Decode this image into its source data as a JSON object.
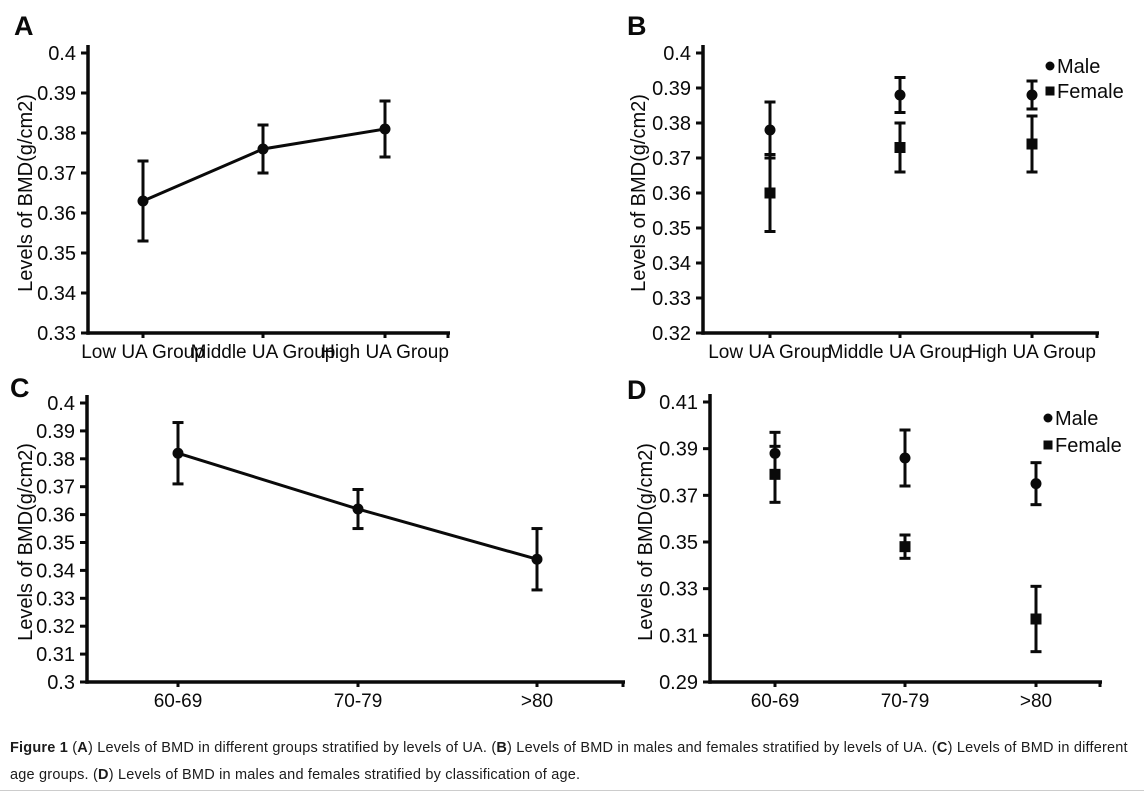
{
  "chart_data": [
    {
      "panel": "A",
      "type": "line",
      "title": "",
      "ylabel": "Levels of BMD(g/cm2)",
      "categories": [
        "Low UA Group",
        "Middle UA Group",
        "High UA Group"
      ],
      "ylim": [
        0.33,
        0.4
      ],
      "ytick_step": 0.01,
      "grid": false,
      "legend": null,
      "series": [
        {
          "marker": "circle",
          "connect": true,
          "values": [
            0.363,
            0.376,
            0.381
          ],
          "err_low": [
            0.353,
            0.37,
            0.374
          ],
          "err_high": [
            0.373,
            0.382,
            0.388
          ]
        }
      ]
    },
    {
      "panel": "B",
      "type": "scatter",
      "title": "",
      "ylabel": "Levels of BMD(g/cm2)",
      "categories": [
        "Low UA Group",
        "Middle UA Group",
        "High UA Group"
      ],
      "ylim": [
        0.32,
        0.4
      ],
      "ytick_step": 0.01,
      "grid": false,
      "legend": {
        "entries": [
          "Male",
          "Female"
        ],
        "position": "top-right"
      },
      "series": [
        {
          "name": "Male",
          "marker": "circle",
          "connect": false,
          "values": [
            0.378,
            0.388,
            0.388
          ],
          "err_low": [
            0.37,
            0.383,
            0.384
          ],
          "err_high": [
            0.386,
            0.393,
            0.392
          ]
        },
        {
          "name": "Female",
          "marker": "square",
          "connect": false,
          "values": [
            0.36,
            0.373,
            0.374
          ],
          "err_low": [
            0.349,
            0.366,
            0.366
          ],
          "err_high": [
            0.371,
            0.38,
            0.382
          ]
        }
      ]
    },
    {
      "panel": "C",
      "type": "line",
      "title": "",
      "ylabel": "Levels of BMD(g/cm2)",
      "categories": [
        "60-69",
        "70-79",
        ">80"
      ],
      "ylim": [
        0.3,
        0.4
      ],
      "ytick_step": 0.01,
      "grid": false,
      "legend": null,
      "series": [
        {
          "marker": "circle",
          "connect": true,
          "values": [
            0.382,
            0.362,
            0.344
          ],
          "err_low": [
            0.371,
            0.355,
            0.333
          ],
          "err_high": [
            0.393,
            0.369,
            0.355
          ]
        }
      ]
    },
    {
      "panel": "D",
      "type": "scatter",
      "title": "",
      "ylabel": "Levels of BMD(g/cm2)",
      "categories": [
        "60-69",
        "70-79",
        ">80"
      ],
      "ylim": [
        0.29,
        0.41
      ],
      "ytick_step": 0.02,
      "grid": false,
      "legend": {
        "entries": [
          "Male",
          "Female"
        ],
        "position": "top-right"
      },
      "series": [
        {
          "name": "Male",
          "marker": "circle",
          "connect": false,
          "values": [
            0.388,
            0.386,
            0.375
          ],
          "err_low": [
            0.379,
            0.374,
            0.366
          ],
          "err_high": [
            0.397,
            0.398,
            0.384
          ]
        },
        {
          "name": "Female",
          "marker": "square",
          "connect": false,
          "values": [
            0.379,
            0.348,
            0.317
          ],
          "err_low": [
            0.367,
            0.343,
            0.303
          ],
          "err_high": [
            0.391,
            0.353,
            0.331
          ]
        }
      ]
    }
  ],
  "caption": {
    "lines": [
      [
        {
          "b": 1,
          "t": "Figure 1"
        },
        {
          "b": 0,
          "t": " ("
        },
        {
          "b": 1,
          "t": "A"
        },
        {
          "b": 0,
          "t": ") Levels of BMD in different groups stratified by levels of UA. ("
        },
        {
          "b": 1,
          "t": "B"
        },
        {
          "b": 0,
          "t": ") Levels of BMD in males and females stratified by levels of UA. ("
        },
        {
          "b": 1,
          "t": "C"
        },
        {
          "b": 0,
          "t": ") Levels of BMD in different"
        }
      ],
      [
        {
          "b": 0,
          "t": "age groups. ("
        },
        {
          "b": 1,
          "t": "D"
        },
        {
          "b": 0,
          "t": ") Levels of BMD in males and females stratified by classification of age."
        }
      ]
    ]
  },
  "ink_color": "#0a0a0a"
}
